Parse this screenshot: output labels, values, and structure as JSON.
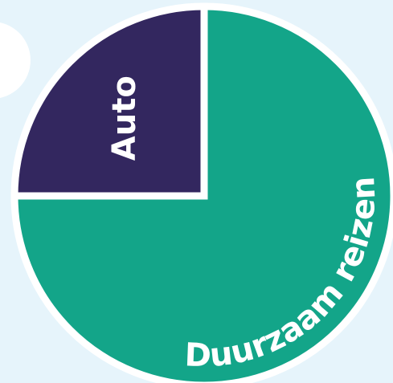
{
  "chart_data": {
    "type": "pie",
    "categories": [
      "Auto",
      "Duurzaam reizen"
    ],
    "values": [
      25,
      75
    ],
    "colors": [
      "#33275f",
      "#13a589"
    ]
  }
}
